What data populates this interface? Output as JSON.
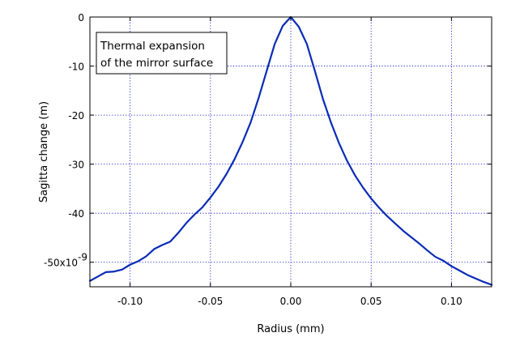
{
  "chart_data": {
    "type": "line",
    "xlabel": "Radius (mm)",
    "ylabel": "Sagitta change (m)",
    "xlim": [
      -0.125,
      0.125
    ],
    "ylim": [
      -55,
      0
    ],
    "y_multiplier_label": "x10",
    "y_multiplier_exponent": "-9",
    "xticks": [
      -0.1,
      -0.05,
      0.0,
      0.05,
      0.1
    ],
    "xtick_labels": [
      "-0.10",
      "-0.05",
      "0.00",
      "0.05",
      "0.10"
    ],
    "yticks": [
      0,
      -10,
      -20,
      -30,
      -40,
      -50
    ],
    "ytick_labels": [
      "0",
      "-10",
      "-20",
      "-30",
      "-40",
      "-50"
    ],
    "grid": true,
    "annotation": {
      "lines": [
        "Thermal expansion",
        "of the mirror surface"
      ],
      "placement": "top-left"
    },
    "series": [
      {
        "color": "#0a2bb5",
        "x": [
          -0.125,
          -0.12,
          -0.115,
          -0.11,
          -0.105,
          -0.1,
          -0.095,
          -0.09,
          -0.085,
          -0.08,
          -0.075,
          -0.07,
          -0.065,
          -0.06,
          -0.055,
          -0.05,
          -0.045,
          -0.04,
          -0.035,
          -0.03,
          -0.025,
          -0.02,
          -0.015,
          -0.01,
          -0.005,
          0.0,
          0.005,
          0.01,
          0.015,
          0.02,
          0.025,
          0.03,
          0.035,
          0.04,
          0.045,
          0.05,
          0.055,
          0.06,
          0.065,
          0.07,
          0.075,
          0.08,
          0.085,
          0.09,
          0.095,
          0.1,
          0.105,
          0.11,
          0.115,
          0.12,
          0.125
        ],
        "y": [
          -53.8,
          -52.9,
          -52.0,
          -51.9,
          -51.5,
          -50.5,
          -49.8,
          -48.8,
          -47.3,
          -46.5,
          -45.8,
          -44.0,
          -42.0,
          -40.3,
          -38.8,
          -36.8,
          -34.6,
          -32.0,
          -29.0,
          -25.5,
          -21.5,
          -16.5,
          -11.0,
          -5.5,
          -1.8,
          0.0,
          -2.0,
          -5.5,
          -11.0,
          -16.7,
          -21.5,
          -25.7,
          -29.3,
          -32.3,
          -34.8,
          -37.0,
          -38.9,
          -40.6,
          -42.1,
          -43.6,
          -44.9,
          -46.2,
          -47.6,
          -48.9,
          -49.7,
          -50.8,
          -51.7,
          -52.6,
          -53.3,
          -54.0,
          -54.6
        ]
      }
    ]
  }
}
